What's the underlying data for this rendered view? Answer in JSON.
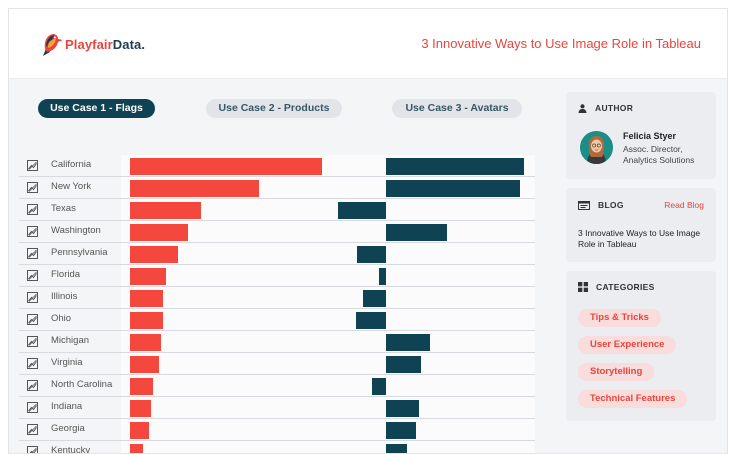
{
  "header": {
    "logo_text_primary": "Playfair",
    "logo_text_secondary": "Data",
    "title": "3 Innovative Ways to Use Image Role in Tableau"
  },
  "tabs": [
    {
      "label": "Use Case 1 - Flags",
      "active": true
    },
    {
      "label": "Use Case 2 - Products",
      "active": false
    },
    {
      "label": "Use Case 3 - Avatars",
      "active": false
    }
  ],
  "chart_data": {
    "type": "bar",
    "categories": [
      "California",
      "New York",
      "Texas",
      "Washington",
      "Pennsylvania",
      "Florida",
      "Illinois",
      "Ohio",
      "Michigan",
      "Virginia",
      "North Carolina",
      "Indiana",
      "Georgia",
      "Kentucky"
    ],
    "series": [
      {
        "values": [
          100,
          67,
          37,
          30,
          25,
          19,
          17,
          17,
          16,
          15,
          12,
          11,
          10,
          7
        ]
      },
      {
        "values": [
          100,
          97,
          -35,
          44,
          -21,
          -5,
          -17,
          -22,
          32,
          25,
          -10,
          24,
          22,
          15
        ]
      }
    ],
    "colors": {
      "primary": "#f4483f",
      "secondary": "#0f4252"
    }
  },
  "sidebar": {
    "author": {
      "heading": "AUTHOR",
      "name": "Felicia Styer",
      "role": "Assoc. Director, Analytics Solutions"
    },
    "blog": {
      "heading": "BLOG",
      "link": "Read Blog",
      "text": "3 Innovative Ways to Use Image Role in Tableau"
    },
    "categories": {
      "heading": "CATEGORIES",
      "items": [
        "Tips & Tricks",
        "User Experience",
        "Storytelling",
        "Technical Features"
      ]
    }
  },
  "colors": {
    "accent": "#e8453c",
    "teal": "#0f4252",
    "background": "#f4f5f7"
  }
}
